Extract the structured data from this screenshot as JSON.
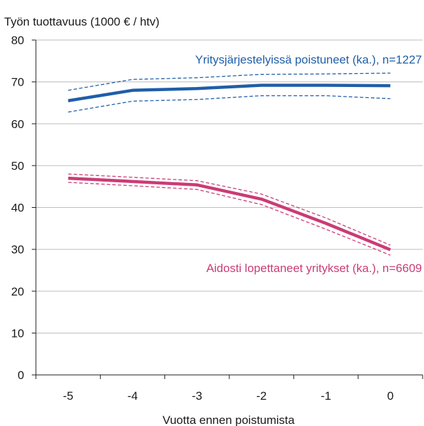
{
  "chart_data": {
    "type": "line",
    "ylabel": "Työn tuottavuus (1000 € / htv)",
    "xlabel": "Vuotta ennen poistumista",
    "x": [
      -5,
      -4,
      -3,
      -2,
      -1,
      0
    ],
    "x_tick_labels": [
      "-5",
      "-4",
      "-3",
      "-2",
      "-1",
      "0"
    ],
    "ylim": [
      0,
      80
    ],
    "y_ticks": [
      0,
      10,
      20,
      30,
      40,
      50,
      60,
      70,
      80
    ],
    "y_tick_labels": [
      "0",
      "10",
      "20",
      "30",
      "40",
      "50",
      "60",
      "70",
      "80"
    ],
    "grid": "horizontal",
    "series": [
      {
        "name": "Yritysjärjestelyissä poistuneet (ka.), n=1227",
        "color": "#1f5ea8",
        "values": [
          65.5,
          68.0,
          68.4,
          69.2,
          69.2,
          69.1
        ],
        "upper": [
          68.0,
          70.6,
          71.0,
          71.8,
          71.9,
          72.1
        ],
        "lower": [
          62.8,
          65.4,
          65.8,
          66.7,
          66.7,
          66.0
        ]
      },
      {
        "name": "Aidosti lopettaneet yritykset (ka.), n=6609",
        "color": "#c93c76",
        "values": [
          47.0,
          46.2,
          45.4,
          42.0,
          36.2,
          29.9
        ],
        "upper": [
          48.0,
          47.2,
          46.4,
          43.2,
          37.5,
          31.0
        ],
        "lower": [
          46.0,
          45.2,
          44.3,
          40.7,
          34.8,
          28.6
        ]
      }
    ]
  }
}
